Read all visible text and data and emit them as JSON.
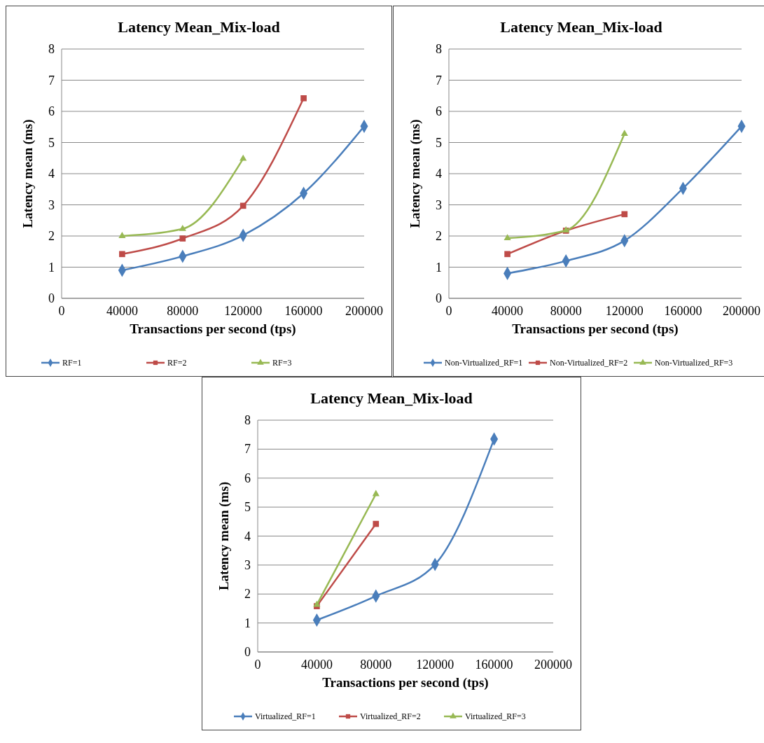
{
  "chart_data": [
    {
      "type": "line",
      "title": "Latency Mean_Mix-load",
      "xlabel": "Transactions per second (tps)",
      "ylabel": "Latency mean (ms)",
      "xlim": [
        0,
        200000
      ],
      "xticks": [
        0,
        40000,
        80000,
        120000,
        160000,
        200000
      ],
      "ylim": [
        0,
        8
      ],
      "yticks": [
        0,
        1,
        2,
        3,
        4,
        5,
        6,
        7,
        8
      ],
      "grid": "y",
      "legend": "bottom",
      "series": [
        {
          "name": "RF=1",
          "color": "#4a7ebb",
          "marker": "diamond",
          "x": [
            40000,
            80000,
            120000,
            160000,
            200000
          ],
          "values": [
            0.9,
            1.35,
            2.02,
            3.37,
            5.52
          ]
        },
        {
          "name": "RF=2",
          "color": "#be4b48",
          "marker": "square",
          "x": [
            40000,
            80000,
            120000,
            160000
          ],
          "values": [
            1.42,
            1.92,
            2.97,
            6.42
          ]
        },
        {
          "name": "RF=3",
          "color": "#98b954",
          "marker": "triangle",
          "x": [
            40000,
            80000,
            120000
          ],
          "values": [
            2.0,
            2.23,
            4.48
          ]
        }
      ]
    },
    {
      "type": "line",
      "title": "Latency Mean_Mix-load",
      "xlabel": "Transactions per second (tps)",
      "ylabel": "Latency mean (ms)",
      "xlim": [
        0,
        200000
      ],
      "xticks": [
        0,
        40000,
        80000,
        120000,
        160000,
        200000
      ],
      "ylim": [
        0,
        8
      ],
      "yticks": [
        0,
        1,
        2,
        3,
        4,
        5,
        6,
        7,
        8
      ],
      "grid": "y",
      "legend": "bottom",
      "series": [
        {
          "name": "Non-Virtualized_RF=1",
          "color": "#4a7ebb",
          "marker": "diamond",
          "x": [
            40000,
            80000,
            120000,
            160000,
            200000
          ],
          "values": [
            0.8,
            1.2,
            1.85,
            3.53,
            5.52
          ]
        },
        {
          "name": "Non-Virtualized_RF=2",
          "color": "#be4b48",
          "marker": "square",
          "x": [
            40000,
            80000,
            120000
          ],
          "values": [
            1.42,
            2.17,
            2.7
          ]
        },
        {
          "name": "Non-Virtualized_RF=3",
          "color": "#98b954",
          "marker": "triangle",
          "x": [
            40000,
            80000,
            120000
          ],
          "values": [
            1.93,
            2.18,
            5.28
          ]
        }
      ]
    },
    {
      "type": "line",
      "title": "Latency Mean_Mix-load",
      "xlabel": "Transactions per second (tps)",
      "ylabel": "Latency mean (ms)",
      "xlim": [
        0,
        200000
      ],
      "xticks": [
        0,
        40000,
        80000,
        120000,
        160000,
        200000
      ],
      "ylim": [
        0,
        8
      ],
      "yticks": [
        0,
        1,
        2,
        3,
        4,
        5,
        6,
        7,
        8
      ],
      "grid": "y",
      "legend": "bottom",
      "series": [
        {
          "name": "Virtualized_RF=1",
          "color": "#4a7ebb",
          "marker": "diamond",
          "x": [
            40000,
            80000,
            120000,
            160000
          ],
          "values": [
            1.1,
            1.93,
            3.02,
            7.35
          ]
        },
        {
          "name": "Virtualized_RF=2",
          "color": "#be4b48",
          "marker": "square",
          "x": [
            40000,
            80000
          ],
          "values": [
            1.58,
            4.42
          ]
        },
        {
          "name": "Virtualized_RF=3",
          "color": "#98b954",
          "marker": "triangle",
          "x": [
            40000,
            80000
          ],
          "values": [
            1.63,
            5.45
          ]
        }
      ]
    }
  ]
}
